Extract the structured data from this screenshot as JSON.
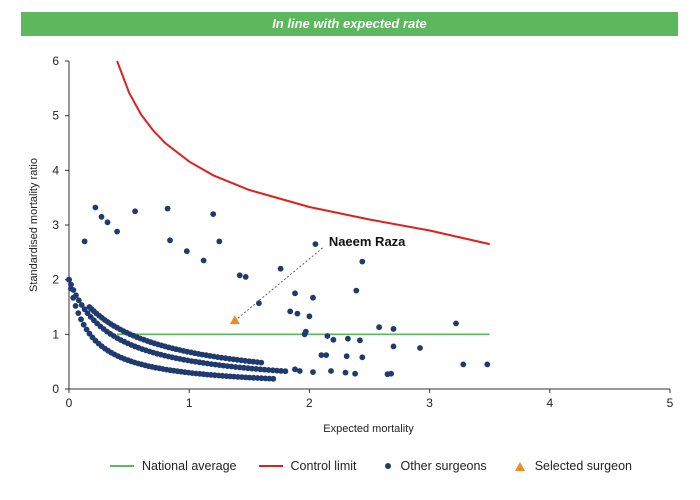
{
  "header": {
    "title": "In line with expected rate"
  },
  "chart_data": {
    "type": "scatter",
    "xlabel": "Expected mortality",
    "ylabel": "Standardised mortality ratio",
    "xlim": [
      0,
      5
    ],
    "ylim": [
      0,
      6
    ],
    "x_ticks": [
      "0",
      "1",
      "2",
      "3",
      "4",
      "5"
    ],
    "y_ticks": [
      "0",
      "1",
      "2",
      "3",
      "4",
      "5",
      "6"
    ],
    "grid": false,
    "legend_position": "bottom",
    "national_average": {
      "name": "National average",
      "y": 1,
      "x_range": [
        0.4,
        3.5
      ],
      "color": "#5cb85c"
    },
    "control_limit": {
      "name": "Control limit",
      "color": "#e02020",
      "points": [
        [
          0.4,
          6.0
        ],
        [
          0.5,
          5.42
        ],
        [
          0.6,
          5.02
        ],
        [
          0.7,
          4.73
        ],
        [
          0.8,
          4.5
        ],
        [
          1.0,
          4.16
        ],
        [
          1.2,
          3.91
        ],
        [
          1.5,
          3.64
        ],
        [
          2.0,
          3.33
        ],
        [
          2.5,
          3.1
        ],
        [
          3.0,
          2.9
        ],
        [
          3.5,
          2.65
        ]
      ]
    },
    "other_surgeons": {
      "name": "Other surgeons",
      "color": "#1f3a6e",
      "curves": [
        {
          "k": 0.35,
          "x_range": [
            0.0,
            1.7
          ],
          "count": 60
        },
        {
          "k": 0.7,
          "x_range": [
            0.0,
            1.8
          ],
          "count": 60
        },
        {
          "k": 1.02,
          "x_range": [
            0.17,
            1.6
          ],
          "count": 50
        }
      ],
      "points": [
        [
          0.13,
          2.7
        ],
        [
          0.22,
          3.32
        ],
        [
          0.27,
          3.15
        ],
        [
          0.32,
          3.05
        ],
        [
          0.4,
          2.88
        ],
        [
          0.55,
          3.25
        ],
        [
          0.82,
          3.3
        ],
        [
          0.84,
          2.72
        ],
        [
          1.2,
          3.2
        ],
        [
          1.25,
          2.7
        ],
        [
          0.98,
          2.52
        ],
        [
          1.12,
          2.35
        ],
        [
          1.42,
          2.08
        ],
        [
          1.47,
          2.05
        ],
        [
          1.58,
          1.57
        ],
        [
          1.76,
          2.2
        ],
        [
          1.88,
          1.75
        ],
        [
          2.03,
          1.67
        ],
        [
          2.05,
          2.65
        ],
        [
          2.39,
          1.8
        ],
        [
          2.44,
          2.33
        ],
        [
          1.84,
          1.42
        ],
        [
          1.9,
          1.38
        ],
        [
          2.0,
          1.33
        ],
        [
          1.97,
          1.05
        ],
        [
          1.96,
          1.0
        ],
        [
          2.15,
          0.97
        ],
        [
          2.2,
          0.9
        ],
        [
          2.32,
          0.92
        ],
        [
          2.42,
          0.89
        ],
        [
          2.58,
          1.13
        ],
        [
          2.7,
          1.1
        ],
        [
          2.7,
          0.78
        ],
        [
          2.92,
          0.75
        ],
        [
          3.22,
          1.2
        ],
        [
          3.28,
          0.45
        ],
        [
          3.48,
          0.45
        ],
        [
          2.1,
          0.62
        ],
        [
          2.14,
          0.62
        ],
        [
          2.31,
          0.6
        ],
        [
          2.44,
          0.58
        ],
        [
          2.3,
          0.3
        ],
        [
          2.38,
          0.28
        ],
        [
          2.65,
          0.27
        ],
        [
          2.68,
          0.28
        ],
        [
          2.18,
          0.33
        ],
        [
          2.03,
          0.31
        ],
        [
          1.92,
          0.33
        ],
        [
          1.88,
          0.36
        ]
      ]
    },
    "selected_surgeon": {
      "name": "Selected surgeon",
      "label": "Naeem Raza",
      "color": "#f08a24",
      "x": 1.38,
      "y": 1.25
    }
  },
  "legend": [
    {
      "label": "National average",
      "kind": "line",
      "color": "#5cb85c"
    },
    {
      "label": "Control limit",
      "kind": "line",
      "color": "#e02020"
    },
    {
      "label": "Other surgeons",
      "kind": "dot",
      "color": "#1f3a6e"
    },
    {
      "label": "Selected surgeon",
      "kind": "triangle",
      "color": "#f08a24"
    }
  ]
}
